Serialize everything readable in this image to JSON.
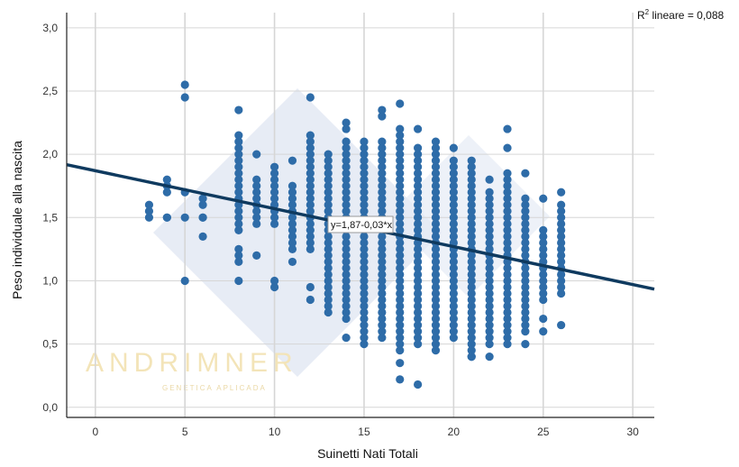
{
  "chart_data": {
    "type": "scatter",
    "title": "",
    "xlabel": "Suinetti Nati Totali",
    "ylabel": "Peso individuale alla nascita",
    "xlim": [
      -1.6,
      31.2
    ],
    "ylim": [
      -0.08,
      3.12
    ],
    "xticks": [
      "0",
      "5",
      "10",
      "15",
      "20",
      "25",
      "30"
    ],
    "yticks": [
      "0,0",
      "0,5",
      "1,0",
      "1,5",
      "2,0",
      "2,5",
      "3,0"
    ],
    "grid": true,
    "legend": "none",
    "r2_label": "R² lineare = 0,088",
    "r2_prefix": "R",
    "r2_sup": "2",
    "r2_rest": " lineare = 0,088",
    "fit_line": {
      "intercept": 1.87,
      "slope": -0.03,
      "label": "y=1,87-0,03*x"
    },
    "colors": {
      "points": "#2e6ca8",
      "line": "#0f3a5f",
      "grid": "#d6d6d6",
      "axis": "#222222"
    },
    "watermark": {
      "text": "ANDRIMNER",
      "subtext": "GENETICA APLICADA"
    },
    "columns": [
      {
        "x": 3,
        "min": 1.5,
        "max": 1.6,
        "gaps": []
      },
      {
        "x": 4,
        "min": 1.5,
        "max": 1.8,
        "gaps": [
          1.55,
          1.6,
          1.65
        ]
      },
      {
        "x": 5,
        "min": 1.5,
        "max": 1.7,
        "gaps": [
          1.55,
          1.6,
          1.65
        ]
      },
      {
        "x": 6,
        "min": 1.35,
        "max": 1.65,
        "gaps": [
          1.4,
          1.45,
          1.55
        ]
      },
      {
        "x": 8,
        "min": 1.15,
        "max": 2.15,
        "gaps": [
          1.3,
          1.35
        ]
      },
      {
        "x": 9,
        "min": 1.45,
        "max": 1.8,
        "gaps": []
      },
      {
        "x": 10,
        "min": 1.45,
        "max": 1.9,
        "gaps": []
      },
      {
        "x": 11,
        "min": 1.25,
        "max": 1.75,
        "gaps": []
      },
      {
        "x": 12,
        "min": 1.25,
        "max": 2.15,
        "gaps": []
      },
      {
        "x": 13,
        "min": 0.75,
        "max": 2.0,
        "gaps": []
      },
      {
        "x": 14,
        "min": 0.7,
        "max": 2.1,
        "gaps": []
      },
      {
        "x": 15,
        "min": 0.5,
        "max": 2.1,
        "gaps": []
      },
      {
        "x": 16,
        "min": 0.55,
        "max": 2.1,
        "gaps": []
      },
      {
        "x": 17,
        "min": 0.45,
        "max": 2.2,
        "gaps": []
      },
      {
        "x": 18,
        "min": 0.5,
        "max": 2.05,
        "gaps": []
      },
      {
        "x": 19,
        "min": 0.5,
        "max": 2.1,
        "gaps": []
      },
      {
        "x": 20,
        "min": 0.55,
        "max": 1.95,
        "gaps": []
      },
      {
        "x": 21,
        "min": 0.4,
        "max": 1.95,
        "gaps": []
      },
      {
        "x": 22,
        "min": 0.5,
        "max": 1.7,
        "gaps": []
      },
      {
        "x": 23,
        "min": 0.55,
        "max": 1.85,
        "gaps": []
      },
      {
        "x": 24,
        "min": 0.6,
        "max": 1.65,
        "gaps": []
      },
      {
        "x": 25,
        "min": 0.85,
        "max": 1.4,
        "gaps": []
      },
      {
        "x": 26,
        "min": 0.9,
        "max": 1.6,
        "gaps": []
      }
    ],
    "points": [
      [
        5,
        2.55
      ],
      [
        5,
        2.45
      ],
      [
        5,
        1.0
      ],
      [
        4,
        1.5
      ],
      [
        6,
        1.5
      ],
      [
        8,
        2.35
      ],
      [
        8,
        1.0
      ],
      [
        9,
        2.0
      ],
      [
        9,
        1.2
      ],
      [
        10,
        1.0
      ],
      [
        10,
        0.95
      ],
      [
        11,
        1.95
      ],
      [
        11,
        1.15
      ],
      [
        12,
        2.45
      ],
      [
        12,
        0.95
      ],
      [
        12,
        0.85
      ],
      [
        14,
        2.25
      ],
      [
        14,
        2.2
      ],
      [
        14,
        0.55
      ],
      [
        16,
        2.35
      ],
      [
        16,
        2.3
      ],
      [
        17,
        2.4
      ],
      [
        17,
        0.35
      ],
      [
        17,
        0.22
      ],
      [
        18,
        2.2
      ],
      [
        18,
        0.18
      ],
      [
        19,
        0.45
      ],
      [
        20,
        2.05
      ],
      [
        21,
        0.4
      ],
      [
        22,
        1.8
      ],
      [
        22,
        0.4
      ],
      [
        23,
        2.2
      ],
      [
        23,
        2.05
      ],
      [
        23,
        0.5
      ],
      [
        24,
        1.85
      ],
      [
        24,
        0.5
      ],
      [
        25,
        1.65
      ],
      [
        25,
        0.7
      ],
      [
        25,
        0.6
      ],
      [
        26,
        1.7
      ],
      [
        26,
        0.65
      ]
    ]
  }
}
